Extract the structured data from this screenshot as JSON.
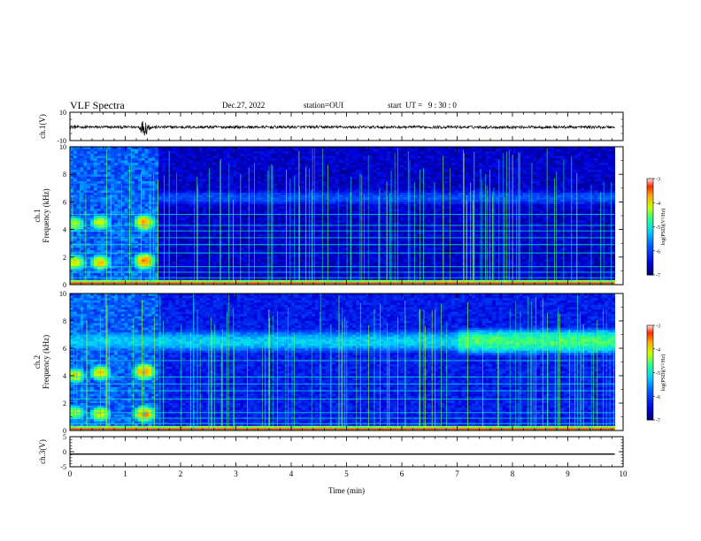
{
  "header": {
    "title": "VLF Spectra",
    "date": "Dec.27, 2022",
    "station": "station=OUI",
    "start": "start  UT =   9 : 30 : 0"
  },
  "chart_data": [
    {
      "type": "line",
      "panel": "ch1-waveform",
      "ylabel": "ch.1(V)",
      "xlim": [
        0,
        10
      ],
      "ylim": [
        -10,
        10
      ],
      "yticks": [
        "10",
        "-10"
      ],
      "baseline": -0.5,
      "amplitude_typical": 1.0,
      "bursts": [
        {
          "t_min": 1.35,
          "amplitude": 3.8
        },
        {
          "t_min": 1.4,
          "amplitude": 3.0
        },
        {
          "t_min": 1.3,
          "amplitude": 2.6
        }
      ]
    },
    {
      "type": "heatmap",
      "panel": "ch1-spectrogram",
      "ylabel": "ch.1\nFrequency (kHz)",
      "xlim": [
        0,
        10
      ],
      "ylim": [
        0,
        10
      ],
      "yticks": [
        "0",
        "2",
        "4",
        "6",
        "8",
        "10"
      ],
      "data_end_min": 9.85,
      "color_scale": {
        "label": "log(PSD)(V²/Hz)",
        "range": [
          -7,
          -3
        ],
        "ticks": [
          "-3",
          "-4",
          "-5",
          "-6",
          "-7"
        ]
      },
      "background_level": -6.6,
      "band": {
        "start_min": 0,
        "end_min": 9.85,
        "freq_khz": 6.3,
        "width_khz": 0.7,
        "level": -5.9
      },
      "blobs": [
        {
          "t_min": 0.1,
          "freq_khz": 4.4,
          "level": -4.2
        },
        {
          "t_min": 0.1,
          "freq_khz": 1.6,
          "level": -4.0
        },
        {
          "t_min": 0.55,
          "freq_khz": 4.5,
          "level": -4.1
        },
        {
          "t_min": 0.55,
          "freq_khz": 1.6,
          "level": -3.9
        },
        {
          "t_min": 1.35,
          "freq_khz": 4.5,
          "level": -3.7
        },
        {
          "t_min": 1.35,
          "freq_khz": 1.7,
          "level": -3.6
        }
      ],
      "lines_khz": [
        0.2,
        0.5,
        0.9,
        1.3,
        2.3,
        2.9,
        3.4,
        3.9,
        4.3,
        5.1
      ]
    },
    {
      "type": "heatmap",
      "panel": "ch2-spectrogram",
      "ylabel": "ch.2\nFrequency (kHz)",
      "xlim": [
        0,
        10
      ],
      "ylim": [
        0,
        10
      ],
      "yticks": [
        "0",
        "2",
        "4",
        "6",
        "8",
        "10"
      ],
      "data_end_min": 9.85,
      "color_scale": {
        "label": "log(PSD)(V²/Hz)",
        "range": [
          -7,
          -3
        ],
        "ticks": [
          "-3",
          "-4",
          "-5",
          "-6",
          "-7"
        ]
      },
      "background_level": -6.3,
      "band": {
        "start_min": 0,
        "end_min": 9.85,
        "freq_khz": 6.5,
        "width_khz": 0.9,
        "level": -5.2
      },
      "band_enhanced": {
        "start_min": 7.0,
        "end_min": 9.85,
        "level": -4.6
      },
      "blobs": [
        {
          "t_min": 0.1,
          "freq_khz": 4.0,
          "level": -4.0
        },
        {
          "t_min": 0.1,
          "freq_khz": 1.3,
          "level": -4.2
        },
        {
          "t_min": 0.55,
          "freq_khz": 4.2,
          "level": -3.9
        },
        {
          "t_min": 0.55,
          "freq_khz": 1.2,
          "level": -4.0
        },
        {
          "t_min": 1.35,
          "freq_khz": 4.3,
          "level": -3.6
        },
        {
          "t_min": 1.35,
          "freq_khz": 1.2,
          "level": -3.6
        }
      ],
      "lines_khz": [
        0.2,
        0.5,
        0.9,
        1.3,
        2.3,
        2.9,
        3.4,
        3.9,
        5.1
      ]
    },
    {
      "type": "line",
      "panel": "ch3-waveform",
      "ylabel": "ch.3(V)",
      "xlabel": "Time  (min)",
      "xlim": [
        0,
        10
      ],
      "ylim": [
        -5,
        5
      ],
      "yticks": [
        "5",
        "0",
        "-5"
      ],
      "xticks": [
        "0",
        "1",
        "2",
        "3",
        "4",
        "5",
        "6",
        "7",
        "8",
        "9",
        "10"
      ],
      "constant_value": -0.8
    }
  ],
  "colors": {
    "waveform": "#000000",
    "axis": "#000000"
  }
}
